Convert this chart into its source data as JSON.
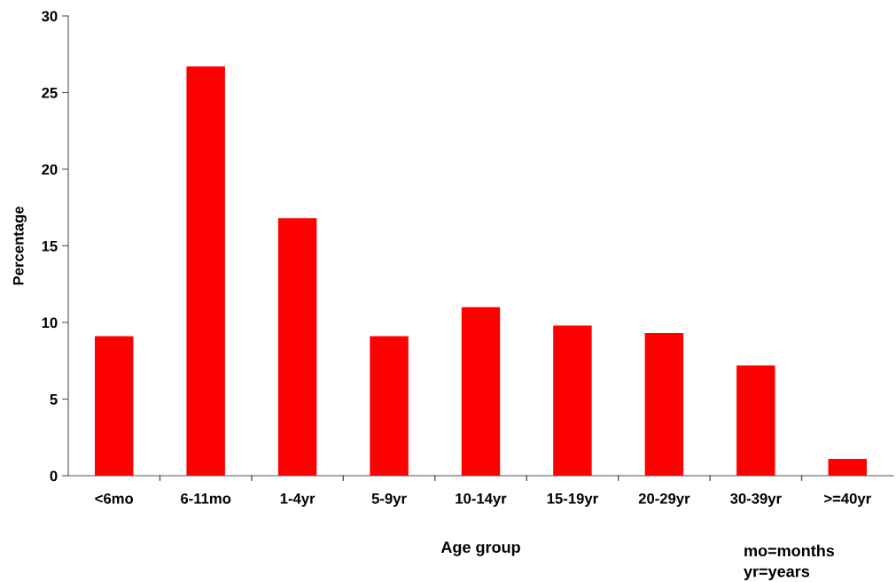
{
  "chart_data": {
    "type": "bar",
    "xlabel": "Age group",
    "ylabel": "Percentage",
    "categories": [
      "<6mo",
      "6-11mo",
      "1-4yr",
      "5-9yr",
      "10-14yr",
      "15-19yr",
      "20-29yr",
      "30-39yr",
      ">=40yr"
    ],
    "values": [
      9.1,
      26.7,
      16.8,
      9.1,
      11.0,
      9.8,
      9.3,
      7.2,
      1.1
    ],
    "color": "#ff0000",
    "ylim": [
      0,
      30
    ],
    "yticks": [
      0,
      5,
      10,
      15,
      20,
      25,
      30
    ],
    "grid": false,
    "annotations": [
      "mo=months\nyr=years"
    ]
  }
}
